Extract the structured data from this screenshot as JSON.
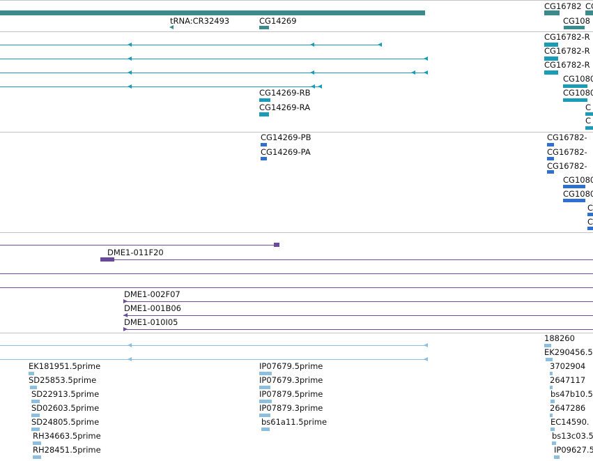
{
  "colors": {
    "gene": "#3a8a8e",
    "mrna": "#1a9cb8",
    "cds": "#2e6fcf",
    "clone": "#6a4a9c",
    "est": "#8cbfdf",
    "separator": "#c4c4c4"
  },
  "tracks": {
    "gene": {
      "labels": [
        "CG16782",
        "CG",
        "tRNA:CR32493",
        "CG14269",
        "CG108"
      ]
    },
    "mrna": {
      "labels": [
        "CG16782-R",
        "CG16782-R",
        "CG16782-R",
        "CG1080",
        "CG1080",
        "CG14269-RB",
        "CG14269-RA",
        "C",
        "C"
      ]
    },
    "cds": {
      "labels": [
        "CG14269-PB",
        "CG14269-PA",
        "CG16782-",
        "CG16782-",
        "CG16782-",
        "CG1080",
        "CG1080",
        "C",
        "C"
      ]
    },
    "clones": {
      "labels": [
        "DME1-011F20",
        "DME1-002F07",
        "DME1-001B06",
        "DME1-010I05"
      ]
    },
    "ests": {
      "left": [
        "EK181951.5prime",
        "SD25853.5prime",
        "SD22913.5prime",
        "SD02603.5prime",
        "SD24805.5prime",
        "RH34663.5prime",
        "RH28451.5prime"
      ],
      "middle": [
        "IP07679.5prime",
        "IP07679.3prime",
        "IP07879.5prime",
        "IP07879.3prime",
        "bs61a11.5prime"
      ],
      "right": [
        "188260",
        "EK290456.5",
        "3702904",
        "2647117",
        "bs47b10.5",
        "2647286",
        "EC14590.",
        "bs13c03.5",
        "IP09627.5"
      ]
    }
  }
}
